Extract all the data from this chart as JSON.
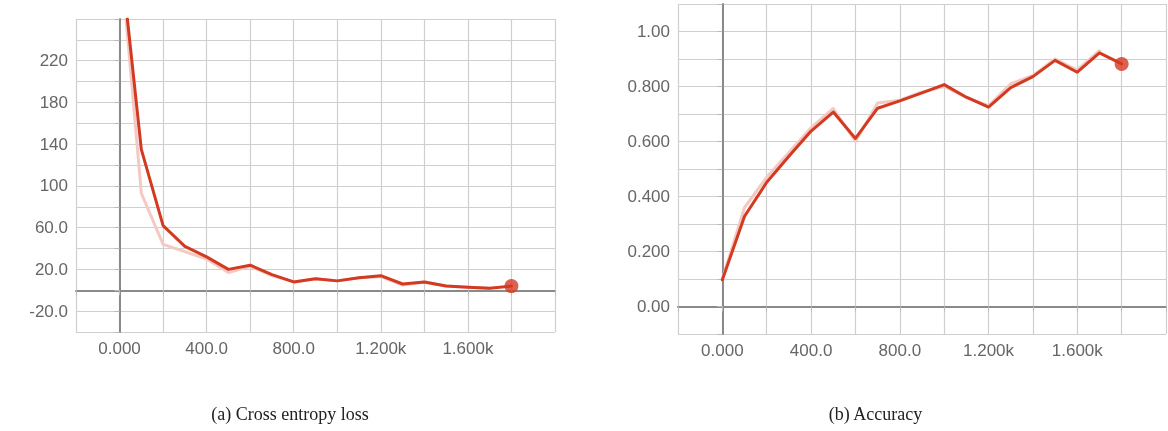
{
  "chart_data": [
    {
      "type": "line",
      "annotations": [
        "(a) Cross entropy loss"
      ],
      "grid": true,
      "marker": "none",
      "line_style": "solid",
      "xlim": [
        -200,
        2000
      ],
      "xticks": [
        {
          "value": -200,
          "label": null
        },
        {
          "value": 0,
          "label": "0.000"
        },
        {
          "value": 200,
          "label": null
        },
        {
          "value": 400,
          "label": "400.0"
        },
        {
          "value": 600,
          "label": null
        },
        {
          "value": 800,
          "label": "800.0"
        },
        {
          "value": 1000,
          "label": null
        },
        {
          "value": 1200,
          "label": "1.200k"
        },
        {
          "value": 1400,
          "label": null
        },
        {
          "value": 1600,
          "label": "1.600k"
        },
        {
          "value": 1800,
          "label": null
        },
        {
          "value": 2000,
          "label": null
        }
      ],
      "ylim": [
        -40,
        260
      ],
      "yticks": [
        {
          "value": -40,
          "label": null
        },
        {
          "value": -20,
          "label": "-20.0"
        },
        {
          "value": 0,
          "label": null
        },
        {
          "value": 20,
          "label": "20.0"
        },
        {
          "value": 40,
          "label": null
        },
        {
          "value": 60,
          "label": "60.0"
        },
        {
          "value": 80,
          "label": null
        },
        100,
        {
          "value": 120,
          "label": null
        },
        140,
        {
          "value": 160,
          "label": null
        },
        180,
        {
          "value": 200,
          "label": null
        },
        220,
        {
          "value": 240,
          "label": null
        },
        {
          "value": 260,
          "label": null
        }
      ],
      "series": [
        {
          "color": "#f4c9c3",
          "x": [
            30,
            100,
            200,
            300,
            400,
            500,
            600,
            700,
            800,
            900,
            1000,
            1100,
            1200,
            1300,
            1400,
            1500,
            1600,
            1700
          ],
          "values": [
            260,
            93,
            44,
            37,
            30,
            17,
            23,
            14,
            8,
            11,
            9,
            12,
            13,
            5,
            8,
            4,
            3,
            2
          ]
        },
        {
          "color": "#d33a22",
          "x": [
            36,
            100,
            200,
            300,
            400,
            500,
            600,
            700,
            800,
            900,
            1000,
            1100,
            1200,
            1300,
            1400,
            1500,
            1600,
            1700,
            1800
          ],
          "values": [
            260,
            135,
            62,
            42,
            32,
            20,
            24,
            15,
            8,
            11,
            9,
            12,
            14,
            6,
            8,
            4,
            3,
            2,
            4
          ]
        },
        {
          "type": "scatter",
          "marker": "circle",
          "color": "#d33a22",
          "x": [
            1800
          ],
          "values": [
            4
          ]
        }
      ]
    },
    {
      "type": "line",
      "annotations": [
        "(b) Accuracy"
      ],
      "grid": true,
      "marker": "none",
      "line_style": "solid",
      "xlim": [
        -200,
        2000
      ],
      "xticks": [
        {
          "value": -200,
          "label": null
        },
        {
          "value": 0,
          "label": "0.000"
        },
        {
          "value": 200,
          "label": null
        },
        {
          "value": 400,
          "label": "400.0"
        },
        {
          "value": 600,
          "label": null
        },
        {
          "value": 800,
          "label": "800.0"
        },
        {
          "value": 1000,
          "label": null
        },
        {
          "value": 1200,
          "label": "1.200k"
        },
        {
          "value": 1400,
          "label": null
        },
        {
          "value": 1600,
          "label": "1.600k"
        },
        {
          "value": 1800,
          "label": null
        },
        {
          "value": 2000,
          "label": null
        }
      ],
      "ylim": [
        -0.1,
        1.1
      ],
      "yticks": [
        {
          "value": -0.1,
          "label": null
        },
        {
          "value": 0,
          "label": "0.00"
        },
        {
          "value": 0.1,
          "label": null
        },
        {
          "value": 0.2,
          "label": "0.200"
        },
        {
          "value": 0.3,
          "label": null
        },
        {
          "value": 0.4,
          "label": "0.400"
        },
        {
          "value": 0.5,
          "label": null
        },
        {
          "value": 0.6,
          "label": "0.600"
        },
        {
          "value": 0.7,
          "label": null
        },
        {
          "value": 0.8,
          "label": "0.800"
        },
        {
          "value": 0.9,
          "label": null
        },
        {
          "value": 1.0,
          "label": "1.00"
        },
        {
          "value": 1.1,
          "label": null
        }
      ],
      "series": [
        {
          "color": "#f4c9c3",
          "x": [
            0,
            100,
            200,
            300,
            400,
            500,
            600,
            700,
            800,
            900,
            1000,
            1100,
            1200,
            1300,
            1400,
            1500,
            1600,
            1700
          ],
          "values": [
            0.1,
            0.36,
            0.47,
            0.56,
            0.65,
            0.72,
            0.6,
            0.74,
            0.75,
            0.78,
            0.8,
            0.76,
            0.73,
            0.81,
            0.84,
            0.9,
            0.86,
            0.93
          ]
        },
        {
          "color": "#d33a22",
          "x": [
            0,
            100,
            200,
            300,
            400,
            500,
            600,
            700,
            800,
            900,
            1000,
            1100,
            1200,
            1300,
            1400,
            1500,
            1600,
            1700,
            1800
          ],
          "values": [
            0.097,
            0.328,
            0.452,
            0.546,
            0.638,
            0.707,
            0.611,
            0.721,
            0.748,
            0.777,
            0.807,
            0.761,
            0.725,
            0.796,
            0.836,
            0.895,
            0.852,
            0.922,
            0.882
          ]
        },
        {
          "type": "scatter",
          "marker": "circle",
          "color": "#d33a22",
          "x": [
            1800
          ],
          "values": [
            0.882
          ]
        }
      ]
    }
  ]
}
